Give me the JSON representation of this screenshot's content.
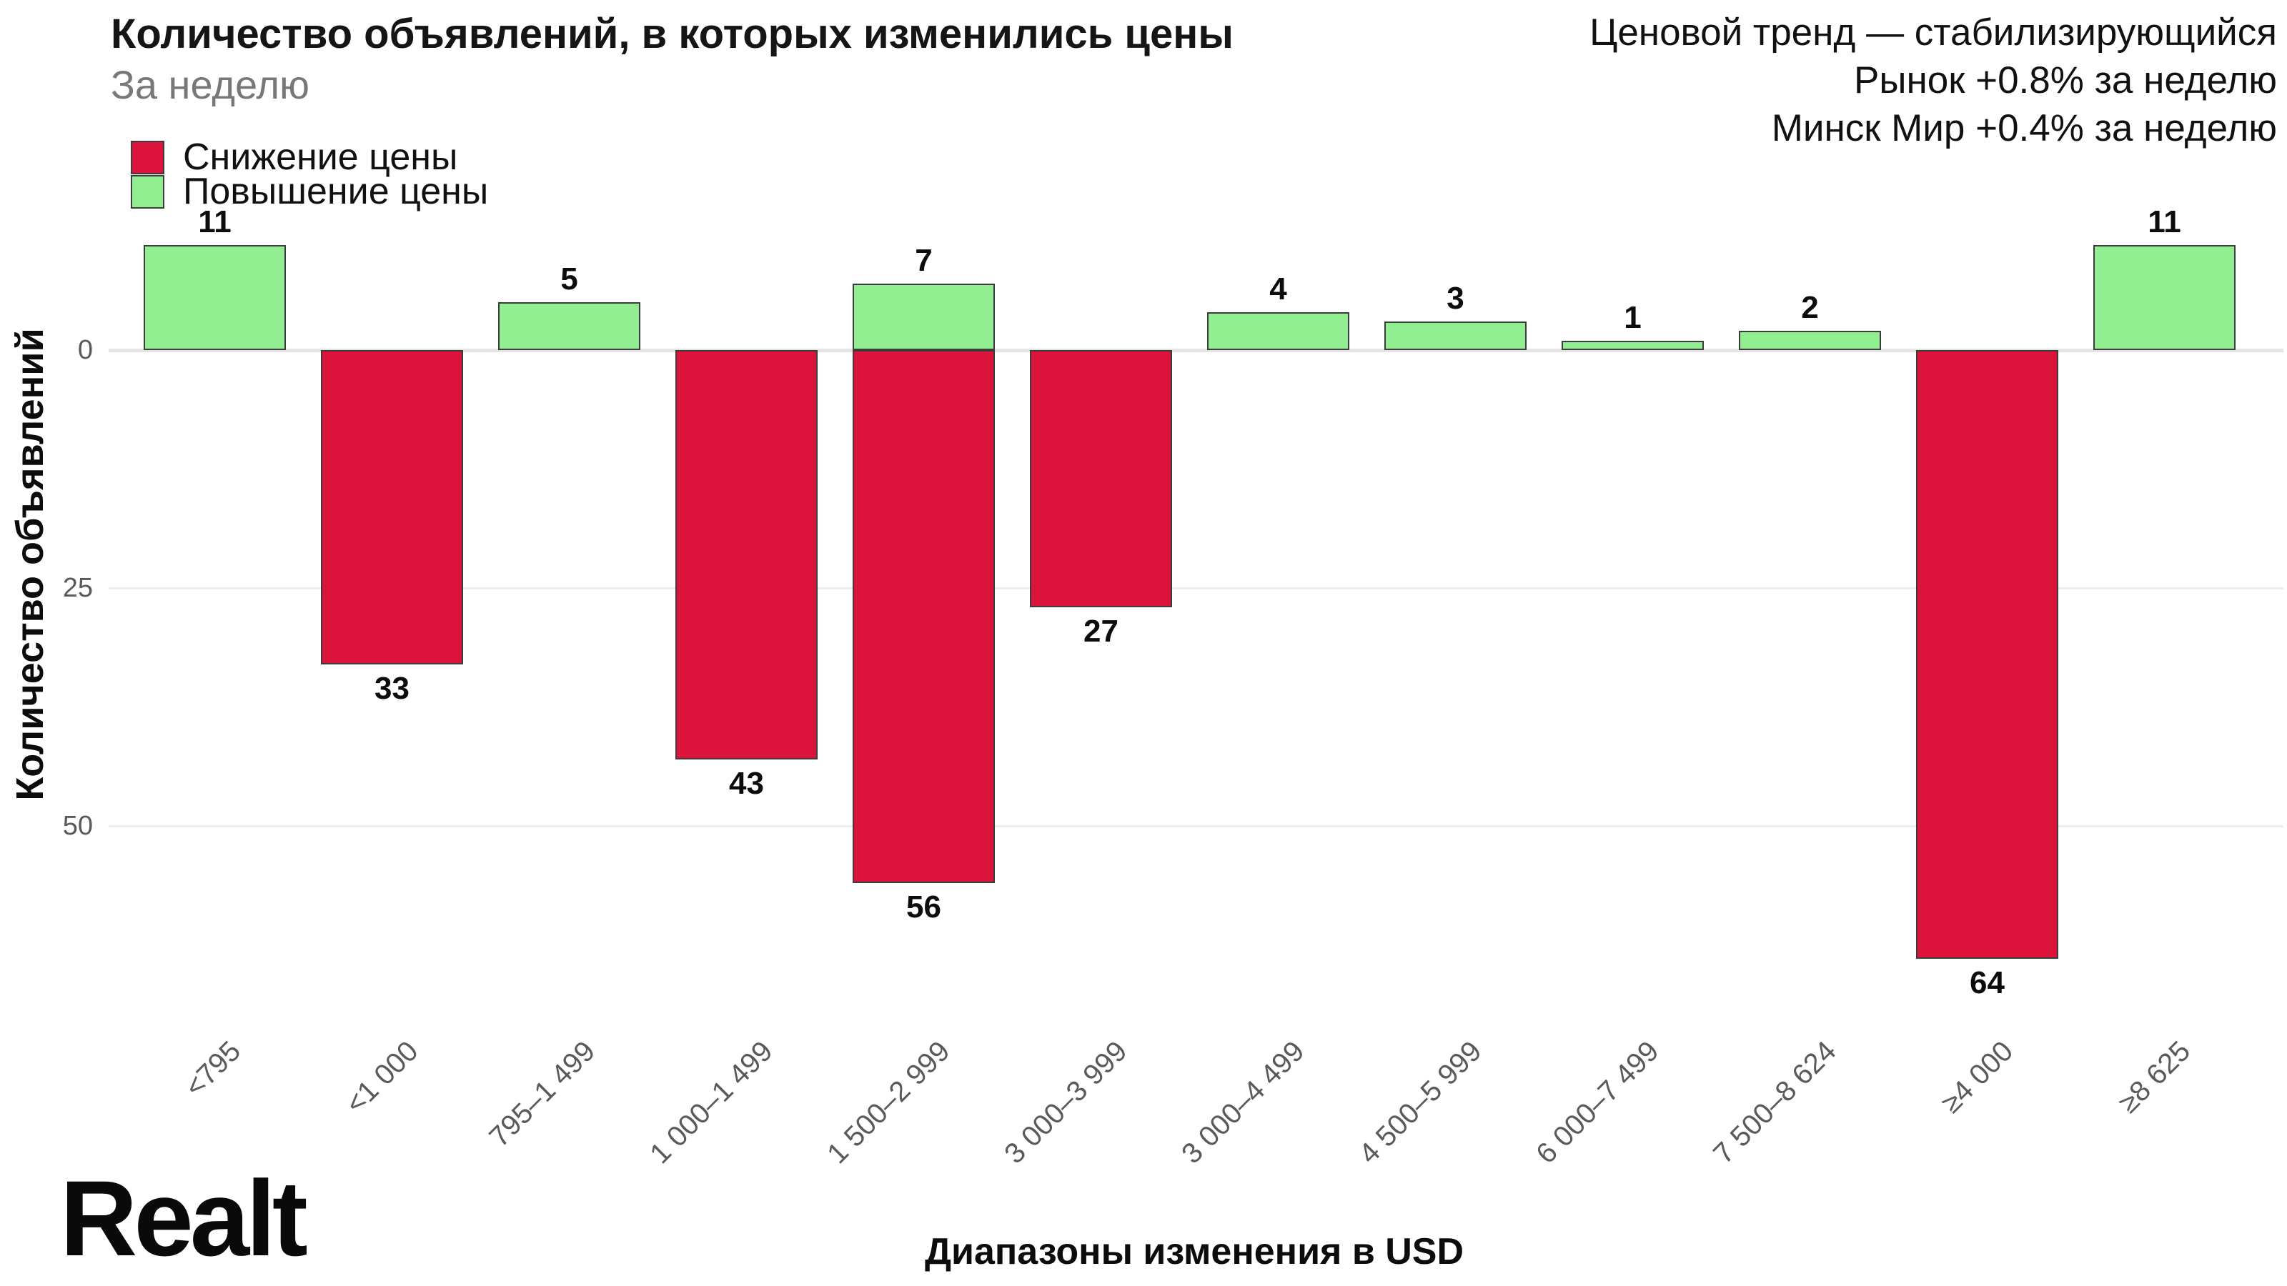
{
  "header": {
    "title": "Количество объявлений, в которых изменились цены",
    "subtitle": "За неделю"
  },
  "trend_annotation": {
    "line1": "Ценовой тренд — стабилизирующийся",
    "line2": "Рынок +0.8% за неделю",
    "line3": "Минск Мир +0.4% за неделю"
  },
  "legend": {
    "items": [
      {
        "label": "Снижение цены",
        "color": "#DC143C"
      },
      {
        "label": "Повышение цены",
        "color": "#90EE90"
      }
    ]
  },
  "logo_text": "Realt",
  "colors": {
    "decrease": "#DC143C",
    "increase": "#90EE90",
    "bar_border": "#3c3c3c",
    "zero_line": "#e4e4e4",
    "grid_line": "#ededed",
    "tick_text": "#595959"
  },
  "chart_data": {
    "type": "bar",
    "diverging": true,
    "title": "Количество объявлений, в которых изменились цены",
    "subtitle": "За неделю",
    "xlabel": "Диапазоны изменения в USD",
    "ylabel": "Количество объявлений",
    "y_ticks": [
      0,
      25,
      50
    ],
    "y_axis_note": "axis increases downward; price increases (green) drawn above zero, price decreases (red) below zero",
    "grid": "horizontal",
    "legend_position": "upper-left",
    "categories": [
      "<795",
      "<1 000",
      "795–1 499",
      "1 000–1 499",
      "1 500–2 999",
      "3 000–3 999",
      "3 000–4 499",
      "4 500–5 999",
      "6 000–7 499",
      "7 500–8 624",
      "≥4 000",
      "≥8 625"
    ],
    "series": [
      {
        "name": "Повышение цены",
        "color": "#90EE90",
        "values": [
          11,
          0,
          5,
          0,
          7,
          0,
          4,
          3,
          1,
          2,
          0,
          11
        ]
      },
      {
        "name": "Снижение цены",
        "color": "#DC143C",
        "values": [
          0,
          33,
          0,
          43,
          56,
          27,
          0,
          0,
          0,
          0,
          64,
          0
        ]
      }
    ],
    "bar_value_labels": true
  }
}
